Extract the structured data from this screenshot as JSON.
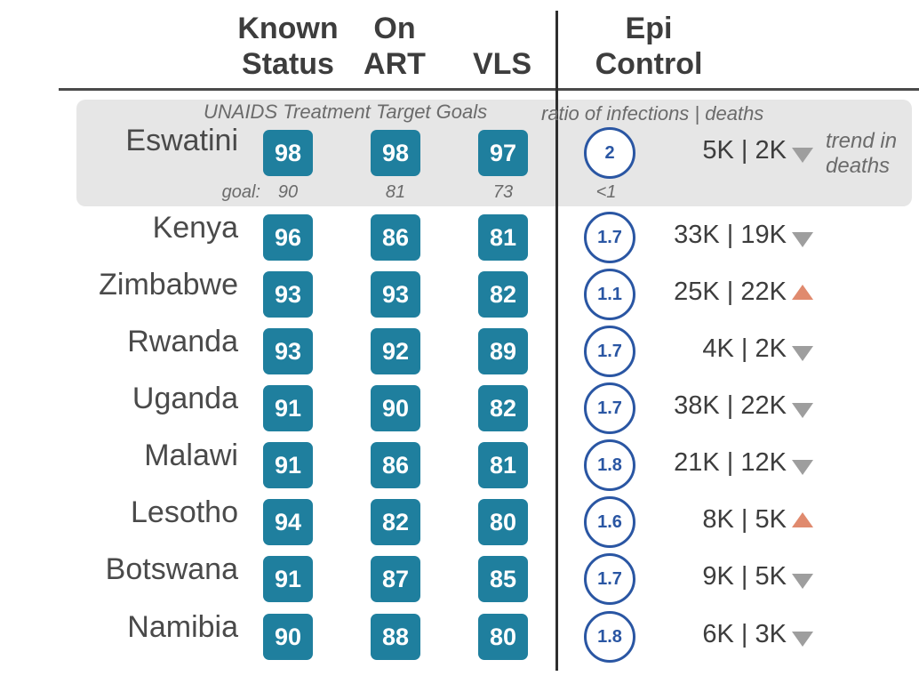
{
  "headers": {
    "known_status": [
      "Known",
      "Status"
    ],
    "on_art": [
      "On",
      "ART"
    ],
    "vls": [
      "VLS"
    ],
    "epi_control": [
      "Epi",
      "Control"
    ]
  },
  "notes": {
    "unaids": "UNAIDS Treatment Target Goals",
    "ratio": "ratio of infections | deaths",
    "trend": [
      "trend in",
      "deaths"
    ],
    "goal_label": "goal:"
  },
  "goals": {
    "known_status": "90",
    "on_art": "81",
    "vls": "73",
    "ratio": "<1"
  },
  "colors": {
    "box": "#1f7f9e",
    "circle": "#2a56a3",
    "trend_down": "#9e9e9e",
    "trend_up": "#e08a6e",
    "highlight": "#e6e6e6"
  },
  "chart_data": {
    "type": "table",
    "columns": [
      "Known Status",
      "On ART",
      "VLS",
      "ratio of infections | deaths",
      "infections",
      "deaths",
      "trend in deaths"
    ],
    "rows": [
      {
        "country": "Eswatini",
        "known_status": 98,
        "on_art": 98,
        "vls": 97,
        "ratio": "2",
        "counts": "5K | 2K",
        "trend": "down"
      },
      {
        "country": "Kenya",
        "known_status": 96,
        "on_art": 86,
        "vls": 81,
        "ratio": "1.7",
        "counts": "33K | 19K",
        "trend": "down"
      },
      {
        "country": "Zimbabwe",
        "known_status": 93,
        "on_art": 93,
        "vls": 82,
        "ratio": "1.1",
        "counts": "25K | 22K",
        "trend": "up"
      },
      {
        "country": "Rwanda",
        "known_status": 93,
        "on_art": 92,
        "vls": 89,
        "ratio": "1.7",
        "counts": "4K | 2K",
        "trend": "down"
      },
      {
        "country": "Uganda",
        "known_status": 91,
        "on_art": 90,
        "vls": 82,
        "ratio": "1.7",
        "counts": "38K | 22K",
        "trend": "down"
      },
      {
        "country": "Malawi",
        "known_status": 91,
        "on_art": 86,
        "vls": 81,
        "ratio": "1.8",
        "counts": "21K | 12K",
        "trend": "down"
      },
      {
        "country": "Lesotho",
        "known_status": 94,
        "on_art": 82,
        "vls": 80,
        "ratio": "1.6",
        "counts": "8K | 5K",
        "trend": "up"
      },
      {
        "country": "Botswana",
        "known_status": 91,
        "on_art": 87,
        "vls": 85,
        "ratio": "1.7",
        "counts": "9K | 5K",
        "trend": "down"
      },
      {
        "country": "Namibia",
        "known_status": 90,
        "on_art": 88,
        "vls": 80,
        "ratio": "1.8",
        "counts": "6K | 3K",
        "trend": "down"
      }
    ]
  }
}
